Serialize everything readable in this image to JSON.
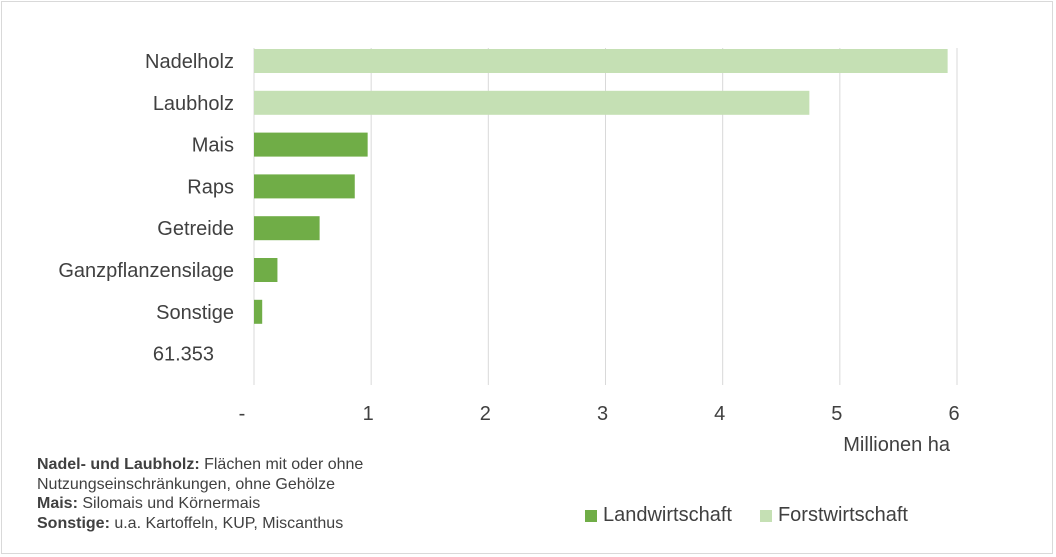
{
  "chart_data": {
    "type": "bar",
    "orientation": "horizontal",
    "categories": [
      "Nadelholz",
      "Laubholz",
      "Mais",
      "Raps",
      "Getreide",
      "Ganzpflanzensilage",
      "Sonstige"
    ],
    "values": [
      5.92,
      4.74,
      0.97,
      0.86,
      0.56,
      0.2,
      0.07
    ],
    "bar_series": [
      "Forstwirtschaft",
      "Forstwirtschaft",
      "Landwirtschaft",
      "Landwirtschaft",
      "Landwirtschaft",
      "Landwirtschaft",
      "Landwirtschaft"
    ],
    "extra_category_label": "61.353",
    "series": [
      {
        "name": "Landwirtschaft",
        "color": "#70ad47"
      },
      {
        "name": "Forstwirtschaft",
        "color": "#c5e0b4"
      }
    ],
    "x_ticks": [
      "-",
      "1",
      "2",
      "3",
      "4",
      "5",
      "6"
    ],
    "xlim": [
      0,
      6
    ],
    "xlabel": "Millionen ha",
    "grid": "vertical",
    "legend_position": "bottom-right"
  },
  "notes": [
    {
      "bold": "Nadel- und Laubholz:",
      "text": " Flächen mit oder ohne Nutzungseinschränkungen, ohne Gehölze"
    },
    {
      "bold": "Mais:",
      "text": " Silomais und Körnermais"
    },
    {
      "bold": "Sonstige:",
      "text": " u.a. Kartoffeln, KUP, Miscanthus"
    }
  ],
  "colors": {
    "landwirtschaft": "#70ad47",
    "forstwirtschaft": "#c5e0b4",
    "grid": "#d9d9d9",
    "text": "#404040"
  }
}
